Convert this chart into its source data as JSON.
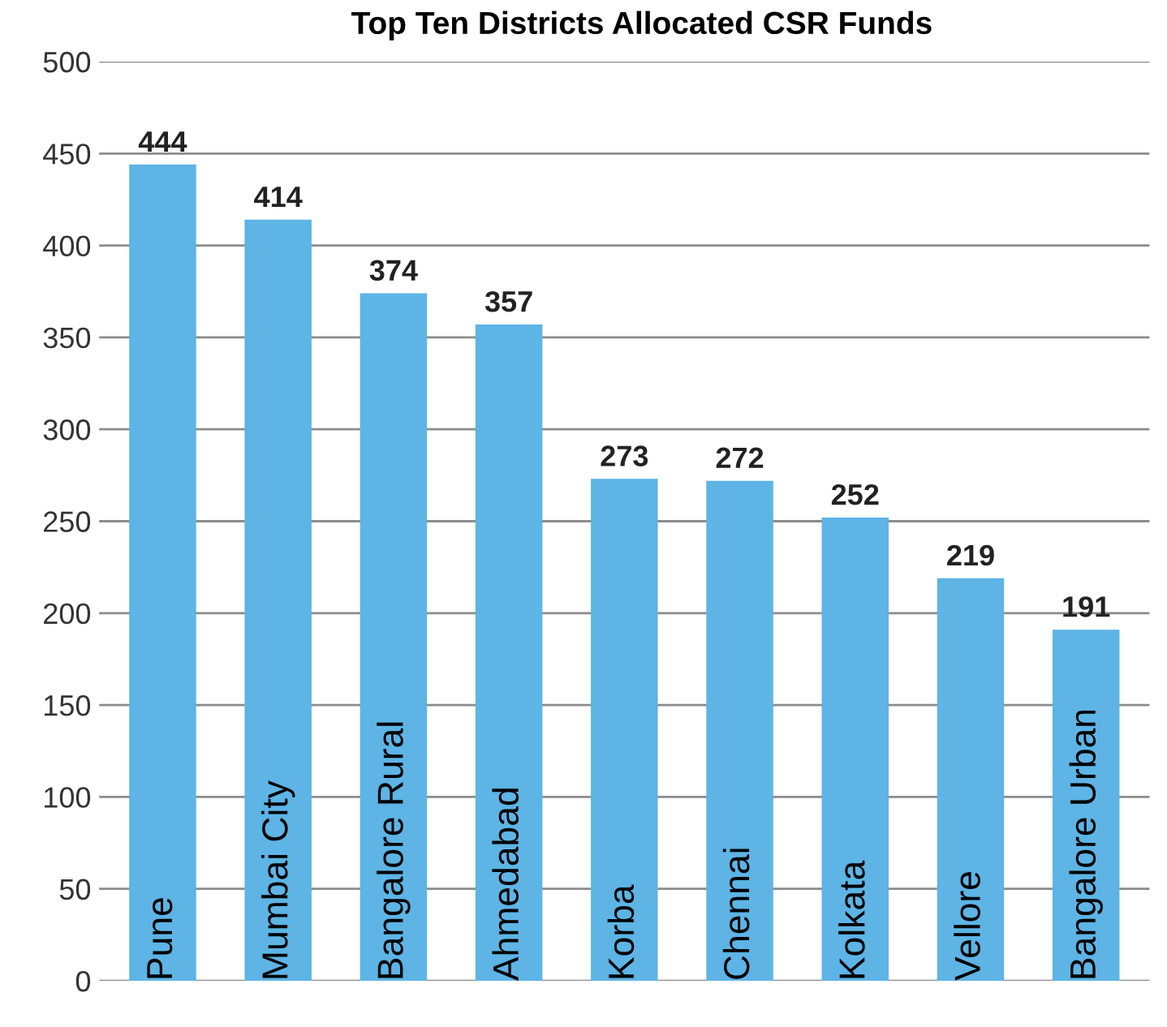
{
  "chart_data": {
    "type": "bar",
    "title": "Top Ten Districts Allocated CSR Funds",
    "categories": [
      "Pune",
      "Mumbai City",
      "Bangalore Rural",
      "Ahmedabad",
      "Korba",
      "Chennai",
      "Kolkata",
      "Vellore",
      "Bangalore Urban"
    ],
    "values": [
      444,
      414,
      374,
      357,
      273,
      272,
      252,
      219,
      191
    ],
    "color": "#5db4e5",
    "ylim": [
      0,
      500
    ],
    "yticks": [
      0,
      50,
      100,
      150,
      200,
      250,
      300,
      350,
      400,
      450,
      500
    ],
    "grid": "y",
    "data_labels": true
  }
}
